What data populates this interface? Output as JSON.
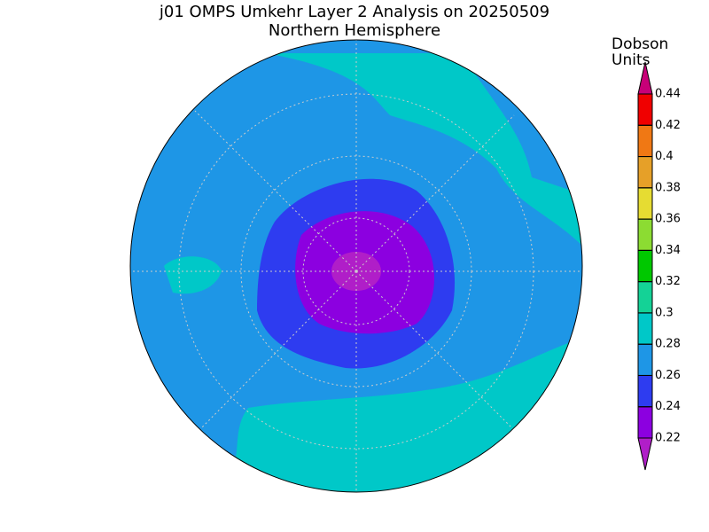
{
  "header": {
    "title": "j01 OMPS Umkehr Layer 2 Analysis on 20250509",
    "subtitle": "Northern Hemisphere"
  },
  "colorbar": {
    "label": [
      "Dobson",
      "Units"
    ],
    "ticks": [
      0.22,
      0.24,
      0.26,
      0.28,
      0.3,
      0.32,
      0.34,
      0.36,
      0.38,
      0.4,
      0.42,
      0.44
    ],
    "colors": [
      "#b01ec8",
      "#8c00e0",
      "#2e3cf0",
      "#1e96e6",
      "#00c8c8",
      "#14d296",
      "#00c800",
      "#8cdc32",
      "#e6dc32",
      "#e6a028",
      "#f07814",
      "#f00000",
      "#c80078"
    ]
  }
}
